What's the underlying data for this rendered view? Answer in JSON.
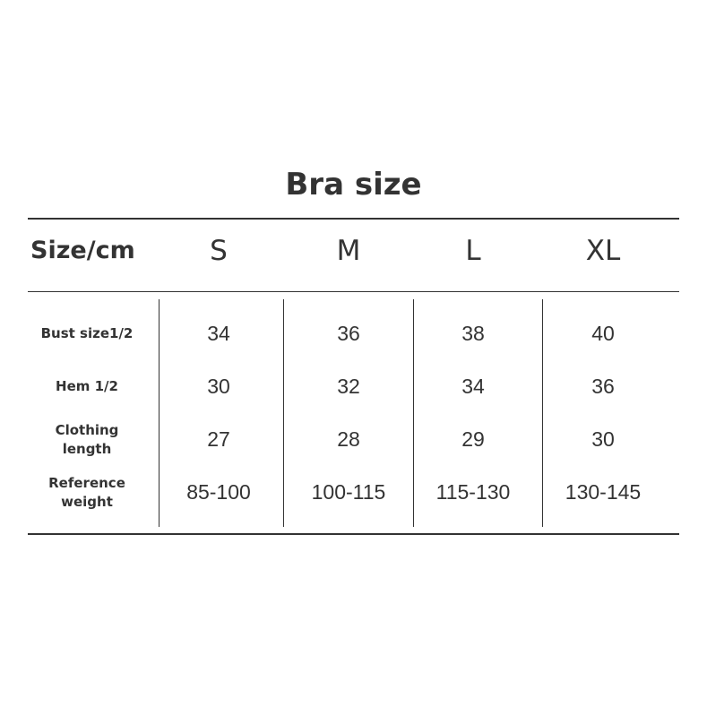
{
  "title": "Bra size",
  "header": {
    "label": "Size/cm",
    "sizes": [
      "S",
      "M",
      "L",
      "XL"
    ]
  },
  "rows": [
    {
      "label": "Bust size1/2",
      "values": [
        "34",
        "36",
        "38",
        "40"
      ]
    },
    {
      "label": "Hem 1/2",
      "values": [
        "30",
        "32",
        "34",
        "36"
      ]
    },
    {
      "label": "Clothing length",
      "values": [
        "27",
        "28",
        "29",
        "30"
      ]
    },
    {
      "label": "Reference weight",
      "values": [
        "85-100",
        "100-115",
        "115-130",
        "130-145"
      ]
    }
  ]
}
